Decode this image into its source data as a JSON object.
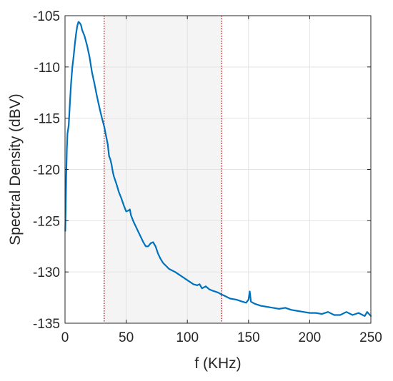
{
  "chart_data": {
    "type": "line",
    "title": "",
    "xlabel": "f (KHz)",
    "ylabel": "Spectral Density (dBV)",
    "xlim": [
      0,
      250
    ],
    "ylim": [
      -135,
      -105
    ],
    "x_ticks": [
      0,
      50,
      100,
      150,
      200,
      250
    ],
    "y_ticks": [
      -135,
      -130,
      -125,
      -120,
      -115,
      -110,
      -105
    ],
    "x_tick_labels": [
      "0",
      "50",
      "100",
      "150",
      "200",
      "250"
    ],
    "y_tick_labels": [
      "-135",
      "-130",
      "-125",
      "-120",
      "-115",
      "-110",
      "-105"
    ],
    "grid": true,
    "legend": "none",
    "shaded_band": {
      "x_start": 32,
      "x_end": 128,
      "color": "#f4f4f4"
    },
    "vertical_markers": [
      {
        "x": 32,
        "color": "#cc0000",
        "style": "dotted"
      },
      {
        "x": 128,
        "color": "#cc0000",
        "style": "dotted"
      }
    ],
    "series": [
      {
        "color": "#0072bd",
        "points": [
          [
            0.2,
            -126.0
          ],
          [
            0.5,
            -124.0
          ],
          [
            1,
            -120.5
          ],
          [
            1.5,
            -118.0
          ],
          [
            2,
            -116.5
          ],
          [
            3,
            -115.7
          ],
          [
            4,
            -113.5
          ],
          [
            5,
            -111.5
          ],
          [
            6,
            -110.0
          ],
          [
            7,
            -109.0
          ],
          [
            8,
            -107.8
          ],
          [
            9,
            -106.8
          ],
          [
            10,
            -106.0
          ],
          [
            11,
            -105.6
          ],
          [
            12,
            -105.7
          ],
          [
            13,
            -105.9
          ],
          [
            14,
            -106.4
          ],
          [
            16,
            -107.0
          ],
          [
            18,
            -107.9
          ],
          [
            20,
            -109.0
          ],
          [
            22,
            -110.5
          ],
          [
            24,
            -111.6
          ],
          [
            26,
            -112.8
          ],
          [
            28,
            -113.9
          ],
          [
            30,
            -114.9
          ],
          [
            32,
            -115.8
          ],
          [
            34,
            -117.0
          ],
          [
            35,
            -117.6
          ],
          [
            36,
            -118.7
          ],
          [
            37,
            -119.0
          ],
          [
            38,
            -119.5
          ],
          [
            39,
            -120.2
          ],
          [
            40,
            -120.7
          ],
          [
            42,
            -121.4
          ],
          [
            44,
            -122.2
          ],
          [
            46,
            -122.8
          ],
          [
            48,
            -123.5
          ],
          [
            50,
            -124.1
          ],
          [
            52,
            -124.0
          ],
          [
            53,
            -123.9
          ],
          [
            54,
            -124.5
          ],
          [
            56,
            -125.1
          ],
          [
            58,
            -125.6
          ],
          [
            60,
            -126.1
          ],
          [
            62,
            -126.6
          ],
          [
            64,
            -127.1
          ],
          [
            66,
            -127.5
          ],
          [
            68,
            -127.5
          ],
          [
            70,
            -127.2
          ],
          [
            72,
            -127.1
          ],
          [
            74,
            -127.5
          ],
          [
            76,
            -128.2
          ],
          [
            78,
            -128.7
          ],
          [
            80,
            -129.1
          ],
          [
            85,
            -129.7
          ],
          [
            90,
            -130.0
          ],
          [
            95,
            -130.4
          ],
          [
            100,
            -130.8
          ],
          [
            105,
            -131.2
          ],
          [
            108,
            -131.3
          ],
          [
            110,
            -131.2
          ],
          [
            112,
            -131.6
          ],
          [
            115,
            -131.4
          ],
          [
            118,
            -131.7
          ],
          [
            120,
            -131.8
          ],
          [
            125,
            -132.0
          ],
          [
            128,
            -132.2
          ],
          [
            130,
            -132.3
          ],
          [
            135,
            -132.6
          ],
          [
            140,
            -132.7
          ],
          [
            145,
            -132.9
          ],
          [
            148,
            -133.0
          ],
          [
            150,
            -132.7
          ],
          [
            151,
            -131.9
          ],
          [
            152,
            -132.9
          ],
          [
            155,
            -133.1
          ],
          [
            160,
            -133.3
          ],
          [
            165,
            -133.4
          ],
          [
            170,
            -133.5
          ],
          [
            175,
            -133.6
          ],
          [
            180,
            -133.5
          ],
          [
            185,
            -133.7
          ],
          [
            190,
            -133.8
          ],
          [
            195,
            -133.9
          ],
          [
            200,
            -134.0
          ],
          [
            205,
            -134.0
          ],
          [
            210,
            -134.1
          ],
          [
            215,
            -133.9
          ],
          [
            220,
            -134.2
          ],
          [
            225,
            -134.2
          ],
          [
            230,
            -133.9
          ],
          [
            235,
            -134.2
          ],
          [
            240,
            -134.0
          ],
          [
            245,
            -134.3
          ],
          [
            247,
            -133.9
          ],
          [
            250,
            -134.3
          ]
        ]
      }
    ]
  }
}
